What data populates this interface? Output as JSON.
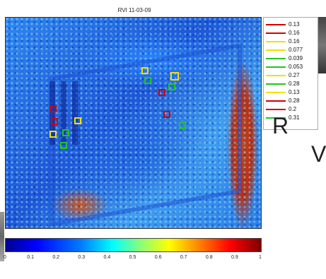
{
  "title": "RVI 11-03-09",
  "legend": [
    {
      "value": "0.13",
      "color": "#d40000"
    },
    {
      "value": "0.16",
      "color": "#d40000"
    },
    {
      "value": "0.16",
      "color": "#f0e000"
    },
    {
      "value": "0.077",
      "color": "#f0e000"
    },
    {
      "value": "0.039",
      "color": "#22c522"
    },
    {
      "value": "0.053",
      "color": "#22c522"
    },
    {
      "value": "0.27",
      "color": "#f0e000"
    },
    {
      "value": "0.28",
      "color": "#22c522"
    },
    {
      "value": "0.13",
      "color": "#f0e000"
    },
    {
      "value": "0.28",
      "color": "#d40000"
    },
    {
      "value": "0.2",
      "color": "#d40000"
    },
    {
      "value": "0.31",
      "color": "#22c522"
    }
  ],
  "colorbar": {
    "ticks": [
      "0",
      "0.1",
      "0.2",
      "0.3",
      "0.4",
      "0.5",
      "0.6",
      "0.7",
      "0.8",
      "0.9",
      "1"
    ]
  },
  "roi_colors": {
    "red": "#d40000",
    "yellow": "#f0e000",
    "green": "#22c522"
  },
  "background_text": {
    "line1": "R",
    "line2": "V"
  }
}
